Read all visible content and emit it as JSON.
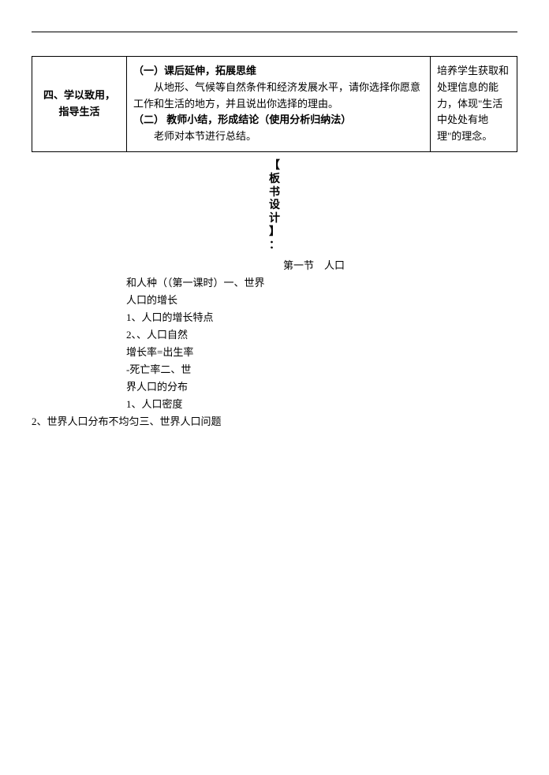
{
  "table": {
    "row1": {
      "left": "四、学以致用，指导生活",
      "middle": {
        "heading1": "（一）课后延伸，拓展思维",
        "para1": "从地形、气候等自然条件和经济发展水平，请你选择你愿意工作和生活的地方，并且说出你选择的理由。",
        "heading2": "（二）  教师小结，形成结论（使用分析归纳法）",
        "para2": "老师对本节进行总结。"
      },
      "right": "培养学生获取和处理信息的能力，体现\"生活中处处有地理\"的理念。"
    }
  },
  "vtitle": {
    "l1": "【",
    "l2": "板",
    "l3": "书",
    "l4": "设",
    "l5": "计",
    "l6": "】",
    "l7": "："
  },
  "outline": {
    "title": "第一节    人口",
    "l1": "和人种（（第一课时）一、世界",
    "l2": "人口的增长",
    "l3": "1、人口的增长特点",
    "l4": "2、、人口自然",
    "l5": "增长率=出生率",
    "l6": "-死亡率二、世",
    "l7": "界人口的分布",
    "l8": "1、人口密度",
    "l9": "2、世界人口分布不均匀三、世界人口问题"
  },
  "colors": {
    "text": "#000000",
    "border": "#000000",
    "background": "#ffffff"
  }
}
